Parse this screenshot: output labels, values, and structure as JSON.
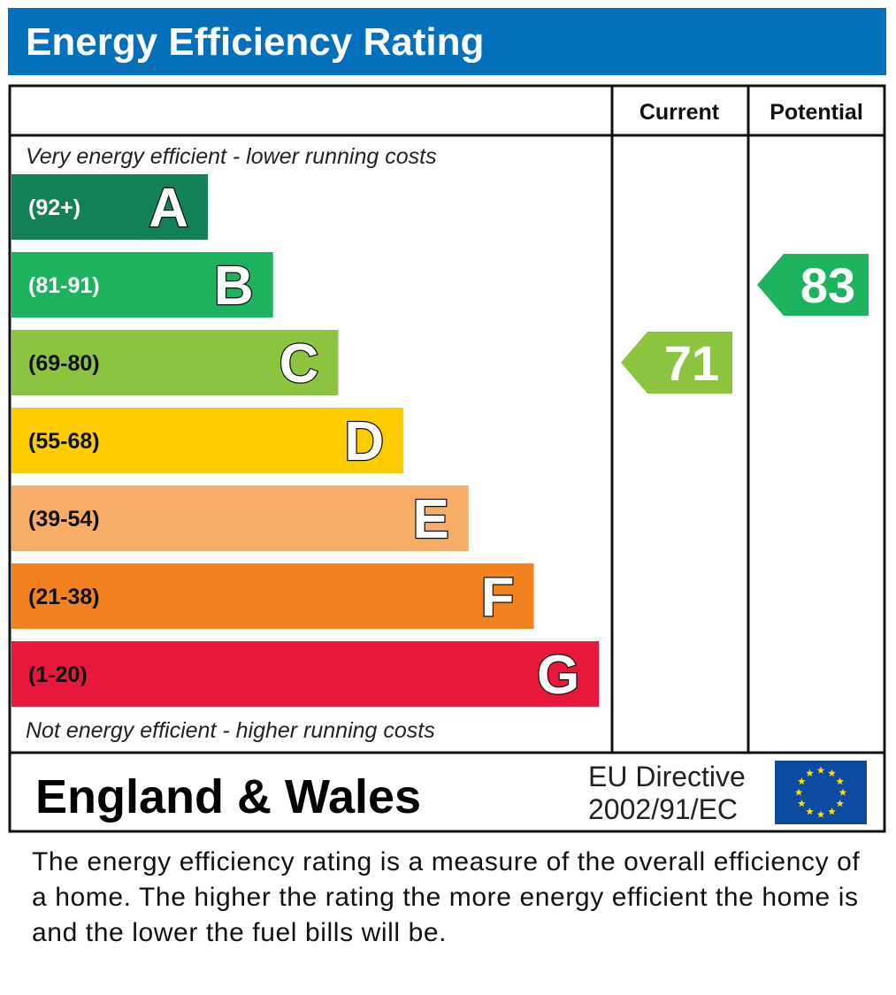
{
  "chart_data": {
    "type": "bar",
    "title": "Energy Efficiency Rating",
    "columns": [
      "Current",
      "Potential"
    ],
    "top_note": "Very energy efficient - lower running costs",
    "bottom_note": "Not energy efficient - higher running costs",
    "bands": [
      {
        "letter": "A",
        "range": "(92+)",
        "color": "#138156",
        "text_color": "#ffffff"
      },
      {
        "letter": "B",
        "range": "(81-91)",
        "color": "#1db25d",
        "text_color": "#ffffff"
      },
      {
        "letter": "C",
        "range": "(69-80)",
        "color": "#8cc33f",
        "text_color": "#111111"
      },
      {
        "letter": "D",
        "range": "(55-68)",
        "color": "#ffcc00",
        "text_color": "#111111"
      },
      {
        "letter": "E",
        "range": "(39-54)",
        "color": "#f8ad66",
        "text_color": "#111111"
      },
      {
        "letter": "F",
        "range": "(21-38)",
        "color": "#f2811f",
        "text_color": "#111111"
      },
      {
        "letter": "G",
        "range": "(1-20)",
        "color": "#e8173b",
        "text_color": "#111111"
      }
    ],
    "current": {
      "value": 71,
      "band": "C",
      "color": "#8cc33f"
    },
    "potential": {
      "value": 83,
      "band": "B",
      "color": "#1db25d"
    }
  },
  "footer": {
    "region": "England & Wales",
    "directive_line1": "EU Directive",
    "directive_line2": "2002/91/EC",
    "flag_icon": "eu-flag-icon",
    "flag_color": "#0d4aa2",
    "star_color": "#ffdd00"
  },
  "description": "The energy efficiency rating is a measure of the overall efficiency of a home.  The higher the rating the more energy efficient the home is and the lower the fuel bills will be.",
  "colors": {
    "title_bar": "#0470bb",
    "border": "#111111"
  }
}
